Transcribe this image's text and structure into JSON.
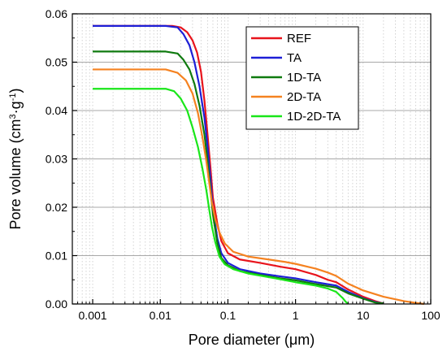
{
  "chart_data": {
    "type": "line",
    "title": "",
    "xlabel": "Pore diameter (μm)",
    "ylabel_parts": {
      "prefix": "Pore volume (cm",
      "sup1": "3",
      "middle": "·g",
      "sup2": "-1",
      "suffix": ")"
    },
    "xscale": "log",
    "xlim": [
      0.0005,
      100
    ],
    "ylim": [
      0,
      0.06
    ],
    "x_ticks": [
      0.001,
      0.01,
      0.1,
      1,
      10,
      100
    ],
    "x_tick_labels": [
      "0.001",
      "0.01",
      "0.1",
      "1",
      "10",
      "100"
    ],
    "y_ticks": [
      0,
      0.01,
      0.02,
      0.03,
      0.04,
      0.05,
      0.06
    ],
    "y_tick_labels": [
      "0.00",
      "0.01",
      "0.02",
      "0.03",
      "0.04",
      "0.05",
      "0.06"
    ],
    "grid": {
      "horizontal_major": true,
      "vertical_minor_dotted": true
    },
    "legend_placement": "top-right",
    "series": [
      {
        "name": "REF",
        "color": "#e8141c",
        "points": [
          [
            0.001,
            0.0575
          ],
          [
            0.015,
            0.0575
          ],
          [
            0.02,
            0.0572
          ],
          [
            0.025,
            0.0562
          ],
          [
            0.03,
            0.0545
          ],
          [
            0.035,
            0.052
          ],
          [
            0.04,
            0.048
          ],
          [
            0.045,
            0.042
          ],
          [
            0.05,
            0.035
          ],
          [
            0.055,
            0.0285
          ],
          [
            0.06,
            0.022
          ],
          [
            0.07,
            0.0165
          ],
          [
            0.08,
            0.013
          ],
          [
            0.1,
            0.0105
          ],
          [
            0.15,
            0.0092
          ],
          [
            0.3,
            0.0085
          ],
          [
            0.6,
            0.0077
          ],
          [
            1,
            0.0072
          ],
          [
            2,
            0.006
          ],
          [
            3,
            0.005
          ],
          [
            4,
            0.0045
          ],
          [
            6,
            0.003
          ],
          [
            10,
            0.0015
          ],
          [
            15,
            0.0006
          ],
          [
            20,
            0.0001
          ]
        ]
      },
      {
        "name": "TA",
        "color": "#1d1fd6",
        "points": [
          [
            0.001,
            0.0575
          ],
          [
            0.012,
            0.0575
          ],
          [
            0.018,
            0.0572
          ],
          [
            0.022,
            0.0558
          ],
          [
            0.027,
            0.0535
          ],
          [
            0.032,
            0.05
          ],
          [
            0.038,
            0.045
          ],
          [
            0.045,
            0.0385
          ],
          [
            0.05,
            0.0325
          ],
          [
            0.055,
            0.026
          ],
          [
            0.06,
            0.0195
          ],
          [
            0.07,
            0.0135
          ],
          [
            0.08,
            0.0105
          ],
          [
            0.1,
            0.0085
          ],
          [
            0.15,
            0.0072
          ],
          [
            0.3,
            0.0063
          ],
          [
            0.6,
            0.0057
          ],
          [
            1,
            0.0053
          ],
          [
            2,
            0.0045
          ],
          [
            4,
            0.0038
          ],
          [
            6,
            0.0025
          ],
          [
            10,
            0.0012
          ],
          [
            15,
            0.0004
          ],
          [
            20,
            0.0001
          ]
        ]
      },
      {
        "name": "1D-TA",
        "color": "#0f7a0f",
        "points": [
          [
            0.001,
            0.0522
          ],
          [
            0.012,
            0.0522
          ],
          [
            0.018,
            0.0518
          ],
          [
            0.022,
            0.0505
          ],
          [
            0.027,
            0.0485
          ],
          [
            0.032,
            0.0455
          ],
          [
            0.038,
            0.041
          ],
          [
            0.045,
            0.035
          ],
          [
            0.05,
            0.0295
          ],
          [
            0.055,
            0.024
          ],
          [
            0.06,
            0.0185
          ],
          [
            0.07,
            0.0125
          ],
          [
            0.08,
            0.0095
          ],
          [
            0.1,
            0.008
          ],
          [
            0.15,
            0.0068
          ],
          [
            0.3,
            0.006
          ],
          [
            0.6,
            0.0053
          ],
          [
            1,
            0.0049
          ],
          [
            2,
            0.0041
          ],
          [
            4,
            0.0034
          ],
          [
            6,
            0.0022
          ],
          [
            10,
            0.0011
          ],
          [
            15,
            0.0003
          ],
          [
            20,
            0.0001
          ]
        ]
      },
      {
        "name": "2D-TA",
        "color": "#f58220",
        "points": [
          [
            0.001,
            0.0485
          ],
          [
            0.012,
            0.0485
          ],
          [
            0.018,
            0.0478
          ],
          [
            0.024,
            0.0462
          ],
          [
            0.03,
            0.0435
          ],
          [
            0.036,
            0.0395
          ],
          [
            0.042,
            0.0345
          ],
          [
            0.048,
            0.0295
          ],
          [
            0.053,
            0.025
          ],
          [
            0.058,
            0.021
          ],
          [
            0.065,
            0.0175
          ],
          [
            0.075,
            0.0148
          ],
          [
            0.09,
            0.0125
          ],
          [
            0.12,
            0.0108
          ],
          [
            0.2,
            0.0098
          ],
          [
            0.4,
            0.0092
          ],
          [
            0.7,
            0.0087
          ],
          [
            1,
            0.0083
          ],
          [
            2,
            0.0073
          ],
          [
            3,
            0.0065
          ],
          [
            4,
            0.0058
          ],
          [
            6,
            0.0042
          ],
          [
            10,
            0.0028
          ],
          [
            20,
            0.0015
          ],
          [
            40,
            0.0006
          ],
          [
            70,
            0.0001
          ],
          [
            80,
            0
          ]
        ]
      },
      {
        "name": "1D-2D-TA",
        "color": "#19e619",
        "points": [
          [
            0.001,
            0.0445
          ],
          [
            0.012,
            0.0445
          ],
          [
            0.016,
            0.044
          ],
          [
            0.02,
            0.0425
          ],
          [
            0.025,
            0.04
          ],
          [
            0.03,
            0.0365
          ],
          [
            0.036,
            0.0325
          ],
          [
            0.042,
            0.028
          ],
          [
            0.048,
            0.0235
          ],
          [
            0.053,
            0.0195
          ],
          [
            0.058,
            0.016
          ],
          [
            0.065,
            0.0128
          ],
          [
            0.075,
            0.0098
          ],
          [
            0.09,
            0.0082
          ],
          [
            0.12,
            0.0072
          ],
          [
            0.2,
            0.0063
          ],
          [
            0.5,
            0.0053
          ],
          [
            1,
            0.0045
          ],
          [
            2,
            0.0038
          ],
          [
            3,
            0.0032
          ],
          [
            4,
            0.0025
          ],
          [
            5,
            0.0012
          ],
          [
            5.5,
            0.0005
          ],
          [
            6,
            0
          ]
        ]
      }
    ]
  }
}
